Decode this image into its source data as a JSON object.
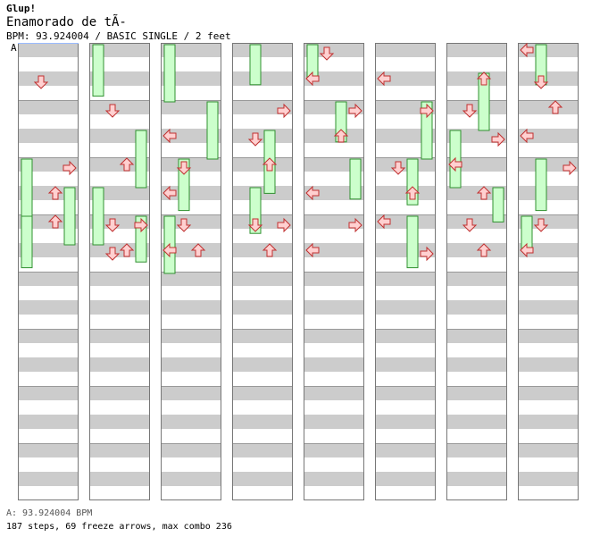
{
  "header": {
    "site": "Glup!",
    "song_title": "Enamorado de tÃ-",
    "info": "BPM: 93.924004 / BASIC SINGLE / 2 feet",
    "bpm_marker": "A"
  },
  "footer": {
    "bpm_line": "A: 93.924004 BPM",
    "stats": "187 steps, 69 freeze arrows, max combo 236"
  },
  "colors": {
    "stripe": "#cccccc",
    "arrow_fill": "#ffd0d0",
    "arrow_stroke": "#c03030",
    "freeze_fill": "#ccffcc",
    "freeze_stroke": "#309030",
    "bpm_line": "#99bbff"
  },
  "chart": {
    "columns": 8,
    "measures_per_column": 8,
    "lanes": [
      "left",
      "down",
      "up",
      "right"
    ],
    "notes": [
      [
        0,
        1,
        1
      ],
      [
        0,
        4,
        3
      ],
      [
        0,
        5,
        2
      ],
      [
        0,
        6,
        2
      ],
      [
        1,
        2,
        1
      ],
      [
        1,
        4,
        2
      ],
      [
        1,
        6,
        1
      ],
      [
        1,
        6,
        3
      ],
      [
        1,
        7,
        1
      ],
      [
        1,
        7,
        2
      ],
      [
        2,
        3,
        0
      ],
      [
        2,
        4,
        1
      ],
      [
        2,
        5,
        0
      ],
      [
        2,
        6,
        1
      ],
      [
        2,
        7,
        0
      ],
      [
        2,
        7,
        2
      ],
      [
        3,
        2,
        3
      ],
      [
        3,
        3,
        1
      ],
      [
        3,
        4,
        2
      ],
      [
        3,
        6,
        3
      ],
      [
        3,
        6,
        1
      ],
      [
        3,
        7,
        2
      ],
      [
        4,
        0,
        1
      ],
      [
        4,
        1,
        0
      ],
      [
        4,
        2,
        3
      ],
      [
        4,
        3,
        2
      ],
      [
        4,
        5,
        0
      ],
      [
        4,
        6,
        3
      ],
      [
        4,
        7,
        0
      ],
      [
        5,
        1,
        0
      ],
      [
        5,
        2,
        3
      ],
      [
        5,
        4,
        1
      ],
      [
        5,
        5,
        2
      ],
      [
        5,
        6,
        0
      ],
      [
        5,
        7,
        3
      ],
      [
        6,
        1,
        2
      ],
      [
        6,
        2,
        1
      ],
      [
        6,
        3,
        3
      ],
      [
        6,
        4,
        0
      ],
      [
        6,
        5,
        2
      ],
      [
        6,
        6,
        1
      ],
      [
        6,
        7,
        2
      ],
      [
        7,
        0,
        0
      ],
      [
        7,
        1,
        1
      ],
      [
        7,
        2,
        2
      ],
      [
        7,
        3,
        0
      ],
      [
        7,
        4,
        3
      ],
      [
        7,
        6,
        1
      ],
      [
        7,
        7,
        0
      ]
    ],
    "freezes": [
      [
        0,
        4,
        0,
        1.0
      ],
      [
        0,
        5,
        3,
        1.0
      ],
      [
        0,
        6,
        0,
        0.9
      ],
      [
        1,
        0,
        0,
        0.9
      ],
      [
        1,
        3,
        3,
        1.0
      ],
      [
        1,
        5,
        0,
        1.0
      ],
      [
        1,
        6,
        3,
        0.8
      ],
      [
        2,
        0,
        0,
        1.0
      ],
      [
        2,
        2,
        3,
        1.0
      ],
      [
        2,
        4,
        1,
        0.9
      ],
      [
        2,
        6,
        0,
        1.0
      ],
      [
        3,
        0,
        1,
        0.7
      ],
      [
        3,
        3,
        2,
        1.1
      ],
      [
        3,
        5,
        1,
        0.8
      ],
      [
        4,
        0,
        0,
        0.6
      ],
      [
        4,
        2,
        2,
        0.7
      ],
      [
        4,
        4,
        3,
        0.7
      ],
      [
        5,
        2,
        3,
        1.0
      ],
      [
        5,
        4,
        2,
        0.8
      ],
      [
        5,
        6,
        2,
        0.9
      ],
      [
        6,
        1,
        2,
        1.0
      ],
      [
        6,
        3,
        0,
        1.0
      ],
      [
        6,
        5,
        3,
        0.6
      ],
      [
        7,
        0,
        1,
        0.7
      ],
      [
        7,
        4,
        1,
        0.9
      ],
      [
        7,
        6,
        0,
        0.6
      ]
    ]
  }
}
